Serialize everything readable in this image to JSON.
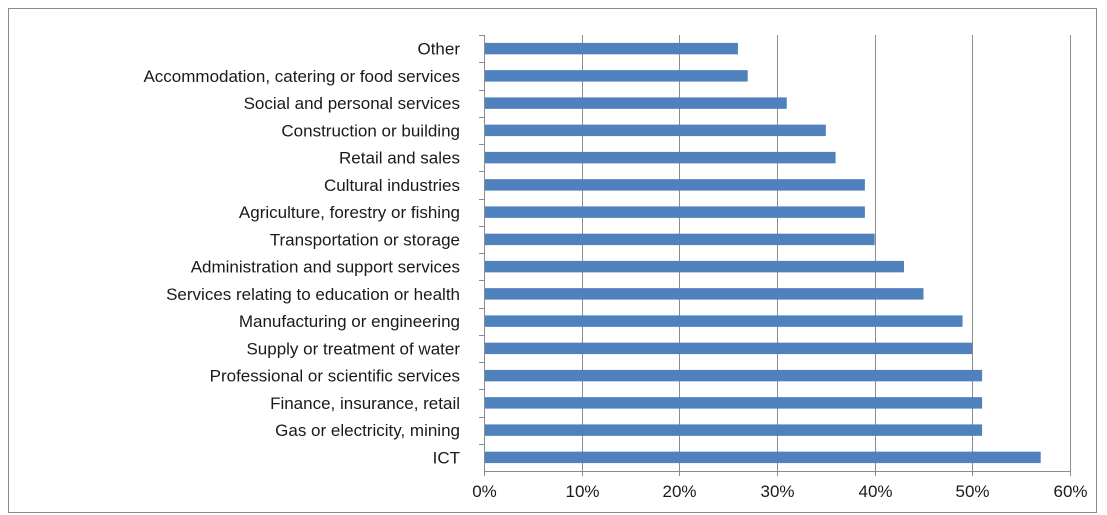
{
  "chart_data": {
    "type": "bar",
    "orientation": "horizontal",
    "title": "",
    "xlabel": "",
    "ylabel": "",
    "categories": [
      "Other",
      "Accommodation, catering or food services",
      "Social and personal services",
      "Construction or building",
      "Retail and sales",
      "Cultural industries",
      "Agriculture, forestry or fishing",
      "Transportation or storage",
      "Administration and support services",
      "Services relating to education or health",
      "Manufacturing or engineering",
      "Supply or treatment of water",
      "Professional or scientific services",
      "Finance, insurance, retail",
      "Gas or electricity, mining",
      "ICT"
    ],
    "values": [
      26,
      27,
      31,
      35,
      36,
      39,
      39,
      40,
      43,
      45,
      49,
      50,
      51,
      51,
      51,
      57
    ],
    "xlim": [
      0,
      60
    ],
    "x_ticks": [
      "0%",
      "10%",
      "20%",
      "30%",
      "40%",
      "50%",
      "60%"
    ],
    "grid": "vertical",
    "legend": "none",
    "bar_color": "#4f81bd",
    "grid_color": "#8c8c8c"
  }
}
